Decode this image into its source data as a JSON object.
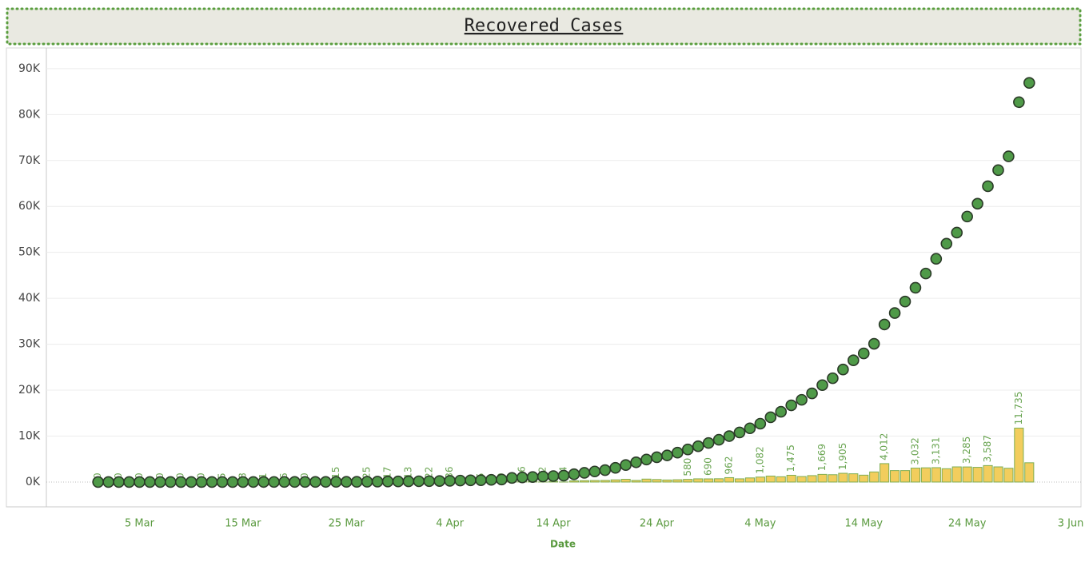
{
  "chart_data": {
    "type": "combo",
    "title": "Recovered Cases",
    "x_label": "Date",
    "x": [
      "1 Mar",
      "2 Mar",
      "3 Mar",
      "4 Mar",
      "5 Mar",
      "6 Mar",
      "7 Mar",
      "8 Mar",
      "9 Mar",
      "10 Mar",
      "11 Mar",
      "12 Mar",
      "13 Mar",
      "14 Mar",
      "15 Mar",
      "16 Mar",
      "17 Mar",
      "18 Mar",
      "19 Mar",
      "20 Mar",
      "21 Mar",
      "22 Mar",
      "23 Mar",
      "24 Mar",
      "25 Mar",
      "26 Mar",
      "27 Mar",
      "28 Mar",
      "29 Mar",
      "30 Mar",
      "31 Mar",
      "1 Apr",
      "2 Apr",
      "3 Apr",
      "4 Apr",
      "5 Apr",
      "6 Apr",
      "7 Apr",
      "8 Apr",
      "9 Apr",
      "10 Apr",
      "11 Apr",
      "12 Apr",
      "13 Apr",
      "14 Apr",
      "15 Apr",
      "16 Apr",
      "17 Apr",
      "18 Apr",
      "19 Apr",
      "20 Apr",
      "21 Apr",
      "22 Apr",
      "23 Apr",
      "24 Apr",
      "25 Apr",
      "26 Apr",
      "27 Apr",
      "28 Apr",
      "29 Apr",
      "30 Apr",
      "1 May",
      "2 May",
      "3 May",
      "4 May",
      "5 May",
      "6 May",
      "7 May",
      "8 May",
      "9 May",
      "10 May",
      "11 May",
      "12 May",
      "13 May",
      "14 May",
      "15 May",
      "16 May",
      "17 May",
      "18 May",
      "19 May",
      "20 May",
      "21 May",
      "22 May",
      "23 May",
      "24 May",
      "25 May",
      "26 May",
      "27 May",
      "28 May",
      "29 May",
      "30 May"
    ],
    "series": [
      {
        "type": "bar",
        "color": "#f2cd5d",
        "edge_color": "#7fae52",
        "values": [
          0,
          0,
          0,
          0,
          0,
          0,
          0,
          0,
          0,
          0,
          0,
          0,
          5,
          0,
          8,
          2,
          1,
          3,
          6,
          2,
          0,
          4,
          3,
          15,
          10,
          12,
          25,
          20,
          17,
          15,
          13,
          30,
          22,
          40,
          36,
          50,
          60,
          5,
          70,
          0,
          100,
          86,
          120,
          12,
          150,
          14,
          260,
          300,
          330,
          350,
          480,
          600,
          350,
          642,
          550,
          449,
          500,
          580,
          700,
          690,
          720,
          962,
          700,
          900,
          1082,
          1300,
          1150,
          1475,
          1200,
          1400,
          1669,
          1600,
          1905,
          1800,
          1500,
          2200,
          4012,
          2500,
          2500,
          3032,
          3100,
          3131,
          2900,
          3300,
          3285,
          3200,
          3587,
          3300,
          3000,
          11735,
          4200
        ],
        "value_labels": [
          "0",
          null,
          "0",
          null,
          "0",
          null,
          "0",
          null,
          "0",
          null,
          "0",
          null,
          "5",
          null,
          "8",
          null,
          "1",
          null,
          "6",
          null,
          "0",
          null,
          null,
          "15",
          null,
          null,
          "25",
          null,
          "17",
          null,
          "13",
          null,
          "22",
          null,
          "36",
          null,
          null,
          "5",
          null,
          "0",
          null,
          "86",
          null,
          "12",
          null,
          "14",
          null,
          null,
          null,
          null,
          null,
          null,
          null,
          null,
          null,
          null,
          null,
          "580",
          null,
          "690",
          null,
          "962",
          null,
          null,
          "1,082",
          null,
          null,
          "1,475",
          null,
          null,
          "1,669",
          null,
          "1,905",
          null,
          null,
          null,
          "4,012",
          null,
          null,
          "3,032",
          null,
          "3,131",
          null,
          null,
          "3,285",
          null,
          "3,587",
          null,
          null,
          "11,735",
          null
        ]
      },
      {
        "type": "scatter",
        "color": "#4f9a48",
        "edge_color": "#2b3a28",
        "values": [
          3,
          3,
          3,
          3,
          3,
          3,
          3,
          3,
          3,
          3,
          3,
          3,
          4,
          4,
          10,
          13,
          14,
          15,
          20,
          23,
          23,
          27,
          35,
          40,
          43,
          45,
          75,
          95,
          115,
          130,
          150,
          170,
          190,
          230,
          270,
          320,
          380,
          400,
          480,
          550,
          900,
          1000,
          1100,
          1200,
          1300,
          1400,
          1700,
          2000,
          2300,
          2600,
          3100,
          3700,
          4300,
          4900,
          5400,
          5800,
          6400,
          7100,
          7800,
          8500,
          9200,
          10000,
          10800,
          11700,
          12700,
          14100,
          15300,
          16700,
          17900,
          19300,
          21100,
          22600,
          24500,
          26500,
          28000,
          30100,
          34300,
          36800,
          39300,
          42300,
          45400,
          48600,
          51900,
          54300,
          57800,
          60600,
          64400,
          67900,
          70900,
          82700,
          86900
        ]
      }
    ],
    "xlim": [
      "25 Feb",
      "4 Jun"
    ],
    "xticks": [
      "5 Mar",
      "15 Mar",
      "25 Mar",
      "4 Apr",
      "14 Apr",
      "24 Apr",
      "4 May",
      "14 May",
      "24 May",
      "3 Jun"
    ],
    "ylim": [
      -5400,
      94500
    ],
    "yticks": [
      {
        "value": 0,
        "label": "0K"
      },
      {
        "value": 10000,
        "label": "10K"
      },
      {
        "value": 20000,
        "label": "20K"
      },
      {
        "value": 30000,
        "label": "30K"
      },
      {
        "value": 40000,
        "label": "40K"
      },
      {
        "value": 50000,
        "label": "50K"
      },
      {
        "value": 60000,
        "label": "60K"
      },
      {
        "value": 70000,
        "label": "70K"
      },
      {
        "value": 80000,
        "label": "80K"
      },
      {
        "value": 90000,
        "label": "90K"
      }
    ],
    "grid": true
  }
}
